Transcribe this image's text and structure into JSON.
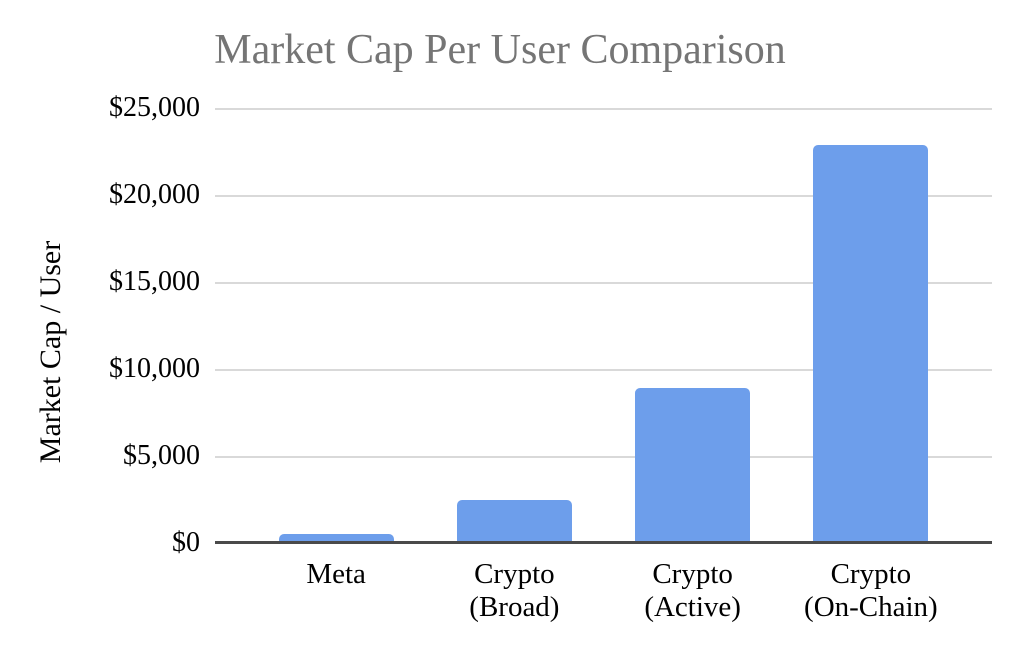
{
  "colors": {
    "bar": "#6d9eeb",
    "title_text": "#757575",
    "axis_text": "#000000",
    "gridline": "#d9d9d9",
    "baseline": "#4a4a4a",
    "background": "#ffffff"
  },
  "chart_data": {
    "type": "bar",
    "title": "Market Cap Per User Comparison",
    "categories": [
      "Meta",
      "Crypto (Broad)",
      "Crypto (Active)",
      "Crypto (On-Chain)"
    ],
    "category_label_lines": [
      [
        "Meta"
      ],
      [
        "Crypto",
        "(Broad)"
      ],
      [
        "Crypto",
        "(Active)"
      ],
      [
        "Crypto",
        "(On-Chain)"
      ]
    ],
    "values": [
      500,
      2500,
      8900,
      22900
    ],
    "xlabel": "",
    "ylabel": "Market Cap / User",
    "ylim": [
      0,
      25000
    ],
    "ytick_interval": 5000,
    "ytick_values": [
      0,
      5000,
      10000,
      15000,
      20000,
      25000
    ],
    "ytick_labels": [
      "$0",
      "$5,000",
      "$10,000",
      "$15,000",
      "$20,000",
      "$25,000"
    ],
    "grid": "horizontal",
    "legend": "none"
  }
}
